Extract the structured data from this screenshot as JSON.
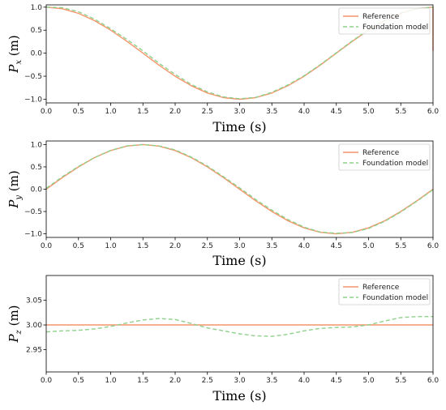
{
  "chart_data": [
    {
      "type": "line",
      "title": "",
      "xlabel": "Time (s)",
      "ylabel": {
        "base": "P",
        "sub": "x",
        "unit": " (m)"
      },
      "xlim": [
        0,
        6
      ],
      "ylim": [
        -1.08,
        1.05
      ],
      "xticks": [
        "0.0",
        "0.5",
        "1.0",
        "1.5",
        "2.0",
        "2.5",
        "3.0",
        "3.5",
        "4.0",
        "4.5",
        "5.0",
        "5.5",
        "6.0"
      ],
      "yticks": [
        {
          "value": -1.0,
          "label": "−1.0"
        },
        {
          "value": -0.5,
          "label": "−0.5"
        },
        {
          "value": 0.0,
          "label": "0.0"
        },
        {
          "value": 0.5,
          "label": "0.5"
        },
        {
          "value": 1.0,
          "label": "1.0"
        }
      ],
      "legend": "top-right",
      "series": [
        {
          "name": "Reference",
          "style": "solid",
          "color": "#f4956a",
          "x": [
            0,
            0.25,
            0.5,
            0.75,
            1,
            1.25,
            1.5,
            1.75,
            2,
            2.25,
            2.5,
            2.75,
            3,
            3.25,
            3.5,
            3.75,
            4,
            4.25,
            4.5,
            4.75,
            5,
            5.25,
            5.5,
            5.75,
            6,
            6,
            6
          ],
          "y": [
            1.0,
            0.966,
            0.866,
            0.707,
            0.5,
            0.259,
            0.0,
            -0.259,
            -0.5,
            -0.707,
            -0.866,
            -0.966,
            -1.0,
            -0.966,
            -0.866,
            -0.707,
            -0.5,
            -0.259,
            0.0,
            0.259,
            0.5,
            0.707,
            0.866,
            0.966,
            1.0,
            0.55,
            0.05
          ]
        },
        {
          "name": "Foundation model",
          "style": "dashed",
          "color": "#8fd18a",
          "x": [
            0,
            0.25,
            0.5,
            0.75,
            1,
            1.25,
            1.5,
            1.75,
            2,
            2.25,
            2.5,
            2.75,
            3,
            3.25,
            3.5,
            3.75,
            4,
            4.25,
            4.5,
            4.75,
            5,
            5.25,
            5.5,
            5.75,
            6
          ],
          "y": [
            1.0,
            0.99,
            0.9,
            0.74,
            0.53,
            0.3,
            0.05,
            -0.22,
            -0.46,
            -0.68,
            -0.84,
            -0.95,
            -0.99,
            -0.96,
            -0.85,
            -0.69,
            -0.49,
            -0.25,
            0.01,
            0.27,
            0.51,
            0.72,
            0.88,
            0.97,
            1.0
          ]
        }
      ]
    },
    {
      "type": "line",
      "title": "",
      "xlabel": "Time (s)",
      "ylabel": {
        "base": "P",
        "sub": "y",
        "unit": " (m)"
      },
      "xlim": [
        0,
        6
      ],
      "ylim": [
        -1.08,
        1.08
      ],
      "xticks": [
        "0.0",
        "0.5",
        "1.0",
        "1.5",
        "2.0",
        "2.5",
        "3.0",
        "3.5",
        "4.0",
        "4.5",
        "5.0",
        "5.5",
        "6.0"
      ],
      "yticks": [
        {
          "value": -1.0,
          "label": "−1.0"
        },
        {
          "value": -0.5,
          "label": "−0.5"
        },
        {
          "value": 0.0,
          "label": "0.0"
        },
        {
          "value": 0.5,
          "label": "0.5"
        },
        {
          "value": 1.0,
          "label": "1.0"
        }
      ],
      "legend": "top-right",
      "series": [
        {
          "name": "Reference",
          "style": "solid",
          "color": "#f4956a",
          "x": [
            0,
            0.25,
            0.5,
            0.75,
            1,
            1.25,
            1.5,
            1.75,
            2,
            2.25,
            2.5,
            2.75,
            3,
            3.25,
            3.5,
            3.75,
            4,
            4.25,
            4.5,
            4.75,
            5,
            5.25,
            5.5,
            5.75,
            6
          ],
          "y": [
            0.0,
            0.259,
            0.5,
            0.707,
            0.866,
            0.966,
            1.0,
            0.966,
            0.866,
            0.707,
            0.5,
            0.259,
            0.0,
            -0.259,
            -0.5,
            -0.707,
            -0.866,
            -0.966,
            -1.0,
            -0.966,
            -0.866,
            -0.707,
            -0.5,
            -0.259,
            0.0
          ]
        },
        {
          "name": "Foundation model",
          "style": "dashed",
          "color": "#8fd18a",
          "x": [
            0,
            0.25,
            0.5,
            0.75,
            1,
            1.25,
            1.5,
            1.75,
            2,
            2.25,
            2.5,
            2.75,
            3,
            3.25,
            3.5,
            3.75,
            4,
            4.25,
            4.5,
            4.75,
            5,
            5.25,
            5.5,
            5.75,
            6
          ],
          "y": [
            0.02,
            0.28,
            0.51,
            0.71,
            0.87,
            0.97,
            1.0,
            0.97,
            0.88,
            0.72,
            0.52,
            0.28,
            0.03,
            -0.23,
            -0.47,
            -0.68,
            -0.85,
            -0.96,
            -0.99,
            -0.97,
            -0.88,
            -0.72,
            -0.51,
            -0.27,
            -0.01
          ]
        }
      ]
    },
    {
      "type": "line",
      "title": "",
      "xlabel": "Time (s)",
      "ylabel": {
        "base": "P",
        "sub": "z",
        "unit": " (m)"
      },
      "xlim": [
        0,
        6
      ],
      "ylim": [
        2.905,
        3.1
      ],
      "xticks": [
        "0.0",
        "0.5",
        "1.0",
        "1.5",
        "2.0",
        "2.5",
        "3.0",
        "3.5",
        "4.0",
        "4.5",
        "5.0",
        "5.5",
        "6.0"
      ],
      "yticks": [
        {
          "value": 2.95,
          "label": "2.95"
        },
        {
          "value": 3.0,
          "label": "3.00"
        },
        {
          "value": 3.05,
          "label": "3.05"
        }
      ],
      "legend": "top-right",
      "series": [
        {
          "name": "Reference",
          "style": "solid",
          "color": "#f4956a",
          "x": [
            0,
            6
          ],
          "y": [
            3.0,
            3.0
          ]
        },
        {
          "name": "Foundation model",
          "style": "dashed",
          "color": "#8fd18a",
          "x": [
            0,
            0.25,
            0.5,
            0.75,
            1,
            1.25,
            1.5,
            1.75,
            2,
            2.25,
            2.5,
            2.75,
            3,
            3.25,
            3.5,
            3.75,
            4,
            4.25,
            4.5,
            4.75,
            5,
            5.25,
            5.5,
            5.75,
            6
          ],
          "y": [
            2.986,
            2.988,
            2.989,
            2.992,
            2.997,
            3.004,
            3.01,
            3.013,
            3.011,
            3.003,
            2.994,
            2.988,
            2.982,
            2.978,
            2.977,
            2.981,
            2.988,
            2.993,
            2.995,
            2.996,
            3.0,
            3.008,
            3.015,
            3.017,
            3.017
          ]
        }
      ]
    }
  ]
}
